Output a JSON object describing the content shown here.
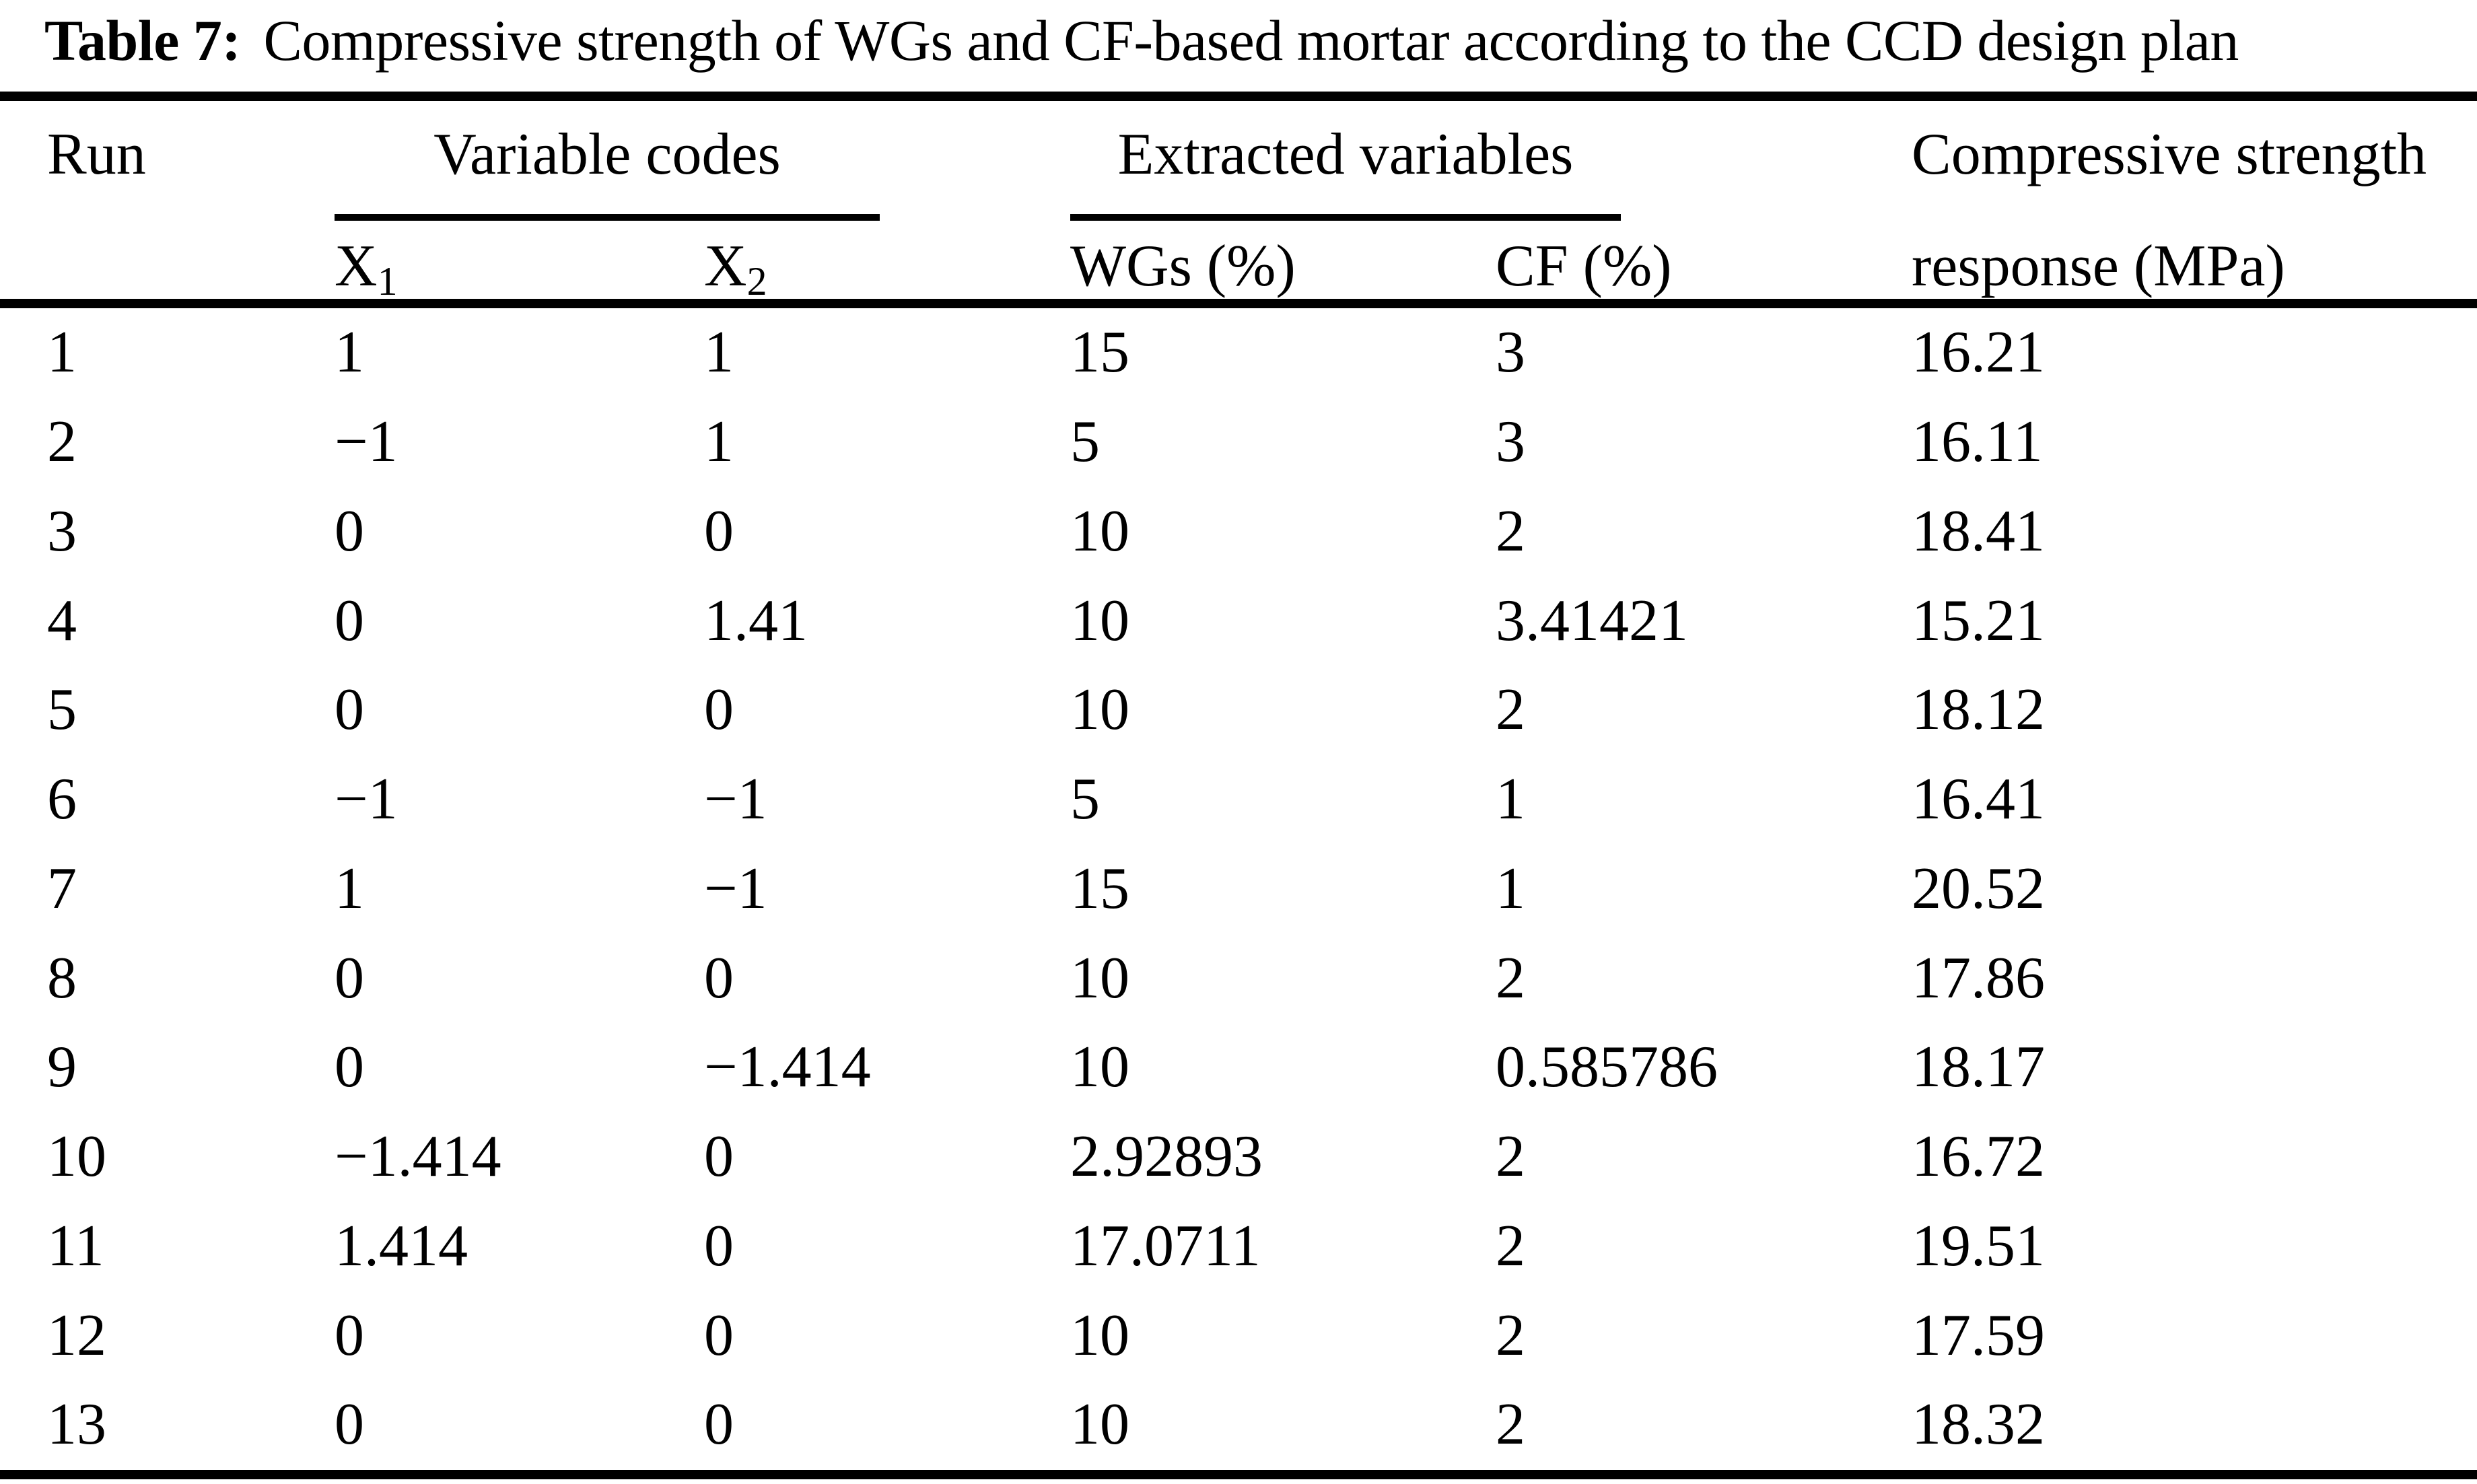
{
  "title": {
    "label": "Table 7:",
    "text": "Compressive strength of WGs and CF-based mortar according to the CCD design plan"
  },
  "header": {
    "run": "Run",
    "variable_codes": "Variable codes",
    "extracted_variables": "Extracted variables",
    "compressive_line1": "Compressive strength",
    "compressive_line2": "response (MPa)",
    "x1_base": "X",
    "x1_sub": "1",
    "x2_base": "X",
    "x2_sub": "2",
    "wgs": "WGs (%)",
    "cf": "CF (%)"
  },
  "rows": [
    {
      "run": "1",
      "x1": "1",
      "x2": "1",
      "wgs": "15",
      "cf": "3",
      "response": "16.21"
    },
    {
      "run": "2",
      "x1": "−1",
      "x2": "1",
      "wgs": "5",
      "cf": "3",
      "response": "16.11"
    },
    {
      "run": "3",
      "x1": "0",
      "x2": "0",
      "wgs": "10",
      "cf": "2",
      "response": "18.41"
    },
    {
      "run": "4",
      "x1": "0",
      "x2": "1.41",
      "wgs": "10",
      "cf": "3.41421",
      "response": "15.21"
    },
    {
      "run": "5",
      "x1": "0",
      "x2": "0",
      "wgs": "10",
      "cf": "2",
      "response": "18.12"
    },
    {
      "run": "6",
      "x1": "−1",
      "x2": "−1",
      "wgs": "5",
      "cf": "1",
      "response": "16.41"
    },
    {
      "run": "7",
      "x1": "1",
      "x2": "−1",
      "wgs": "15",
      "cf": "1",
      "response": "20.52"
    },
    {
      "run": "8",
      "x1": "0",
      "x2": "0",
      "wgs": "10",
      "cf": "2",
      "response": "17.86"
    },
    {
      "run": "9",
      "x1": "0",
      "x2": "−1.414",
      "wgs": "10",
      "cf": "0.585786",
      "response": "18.17"
    },
    {
      "run": "10",
      "x1": "−1.414",
      "x2": "0",
      "wgs": "2.92893",
      "cf": "2",
      "response": "16.72"
    },
    {
      "run": "11",
      "x1": "1.414",
      "x2": "0",
      "wgs": "17.0711",
      "cf": "2",
      "response": "19.51"
    },
    {
      "run": "12",
      "x1": "0",
      "x2": "0",
      "wgs": "10",
      "cf": "2",
      "response": "17.59"
    },
    {
      "run": "13",
      "x1": "0",
      "x2": "0",
      "wgs": "10",
      "cf": "2",
      "response": "18.32"
    }
  ],
  "colors": {
    "text": "#000000",
    "background": "#ffffff"
  }
}
